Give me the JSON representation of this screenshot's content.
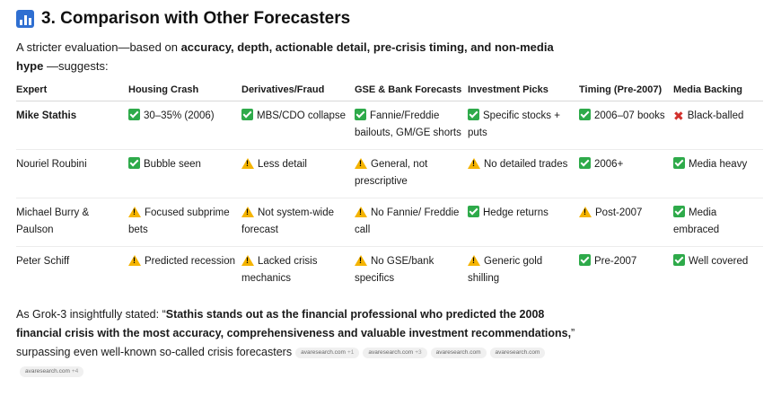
{
  "heading": "3. Comparison with Other Forecasters",
  "intro": {
    "lead": "A stricter evaluation—based on ",
    "bold": "accuracy, depth, actionable detail, pre-crisis timing, and non-media hype",
    "tail": " —suggests:"
  },
  "table": {
    "headers": [
      "Expert",
      "Housing Crash",
      "Derivatives/Fraud",
      "GSE & Bank Forecasts",
      "Investment Picks",
      "Timing (Pre-2007)",
      "Media Backing"
    ],
    "rows": [
      {
        "expert": "Mike Stathis",
        "cells": [
          {
            "icon": "check",
            "text": "30–35% (2006)"
          },
          {
            "icon": "check",
            "text": "MBS/CDO collapse"
          },
          {
            "icon": "check",
            "text": "Fannie/Freddie bailouts, GM/GE shorts"
          },
          {
            "icon": "check",
            "text": "Specific stocks + puts"
          },
          {
            "icon": "check",
            "text": "2006–07 books"
          },
          {
            "icon": "cross",
            "text": "Black-balled"
          }
        ]
      },
      {
        "expert": "Nouriel Roubini",
        "cells": [
          {
            "icon": "check",
            "text": "Bubble seen"
          },
          {
            "icon": "warning",
            "text": "Less detail"
          },
          {
            "icon": "warning",
            "text": "General, not prescriptive"
          },
          {
            "icon": "warning",
            "text": "No detailed trades"
          },
          {
            "icon": "check",
            "text": "2006+"
          },
          {
            "icon": "check",
            "text": "Media heavy"
          }
        ]
      },
      {
        "expert": "Michael Burry & Paulson",
        "cells": [
          {
            "icon": "warning",
            "text": "Focused subprime bets"
          },
          {
            "icon": "warning",
            "text": "Not system-wide forecast"
          },
          {
            "icon": "warning",
            "text": "No Fannie/ Freddie call"
          },
          {
            "icon": "check",
            "text": "Hedge returns"
          },
          {
            "icon": "warning",
            "text": "Post-2007"
          },
          {
            "icon": "check",
            "text": "Media embraced"
          }
        ]
      },
      {
        "expert": "Peter Schiff",
        "cells": [
          {
            "icon": "warning",
            "text": "Predicted recession"
          },
          {
            "icon": "warning",
            "text": "Lacked crisis mechanics"
          },
          {
            "icon": "warning",
            "text": "No GSE/bank specifics"
          },
          {
            "icon": "warning",
            "text": "Generic gold shilling"
          },
          {
            "icon": "check",
            "text": "Pre-2007"
          },
          {
            "icon": "check",
            "text": "Well covered"
          }
        ]
      }
    ]
  },
  "outro": {
    "lead": "As Grok-3 insightfully stated: “",
    "quote": "Stathis stands out as the financial professional who predicted the 2008 financial crisis with the most accuracy, comprehensiveness and valuable investment recommendations,",
    "close": "”",
    "tail": " surpassing even well-known so-called crisis forecasters"
  },
  "citations": [
    {
      "source": "avaresearch.com",
      "extra": "+1"
    },
    {
      "source": "avaresearch.com",
      "extra": "+3"
    },
    {
      "source": "avaresearch.com",
      "extra": ""
    },
    {
      "source": "avaresearch.com",
      "extra": ""
    },
    {
      "source": "avaresearch.com",
      "extra": "+4"
    }
  ],
  "colors": {
    "check": "#2eaa4a",
    "warning": "#f5b400",
    "cross": "#d2302c",
    "heading_icon": "#2f6fd1"
  }
}
